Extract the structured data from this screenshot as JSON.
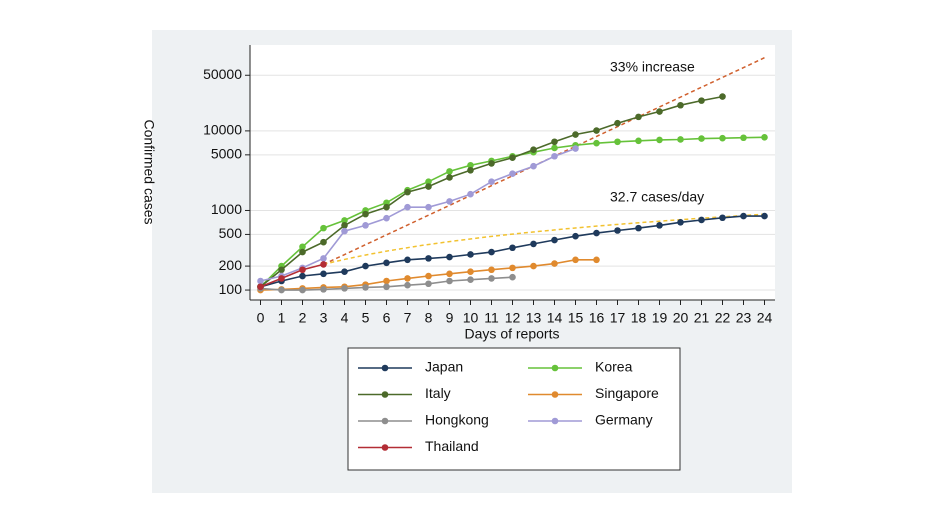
{
  "chart_data": {
    "type": "line",
    "ylabel": "Confirmed cases",
    "xlabel": "Days of reports",
    "log_y": true,
    "grid": true,
    "legend": "below",
    "x": [
      0,
      1,
      2,
      3,
      4,
      5,
      6,
      7,
      8,
      9,
      10,
      11,
      12,
      13,
      14,
      15,
      16,
      17,
      18,
      19,
      20,
      21,
      22,
      23,
      24
    ],
    "xlim": [
      -0.5,
      24.5
    ],
    "xticks": [
      0,
      1,
      2,
      3,
      4,
      5,
      6,
      7,
      8,
      9,
      10,
      11,
      12,
      13,
      14,
      15,
      16,
      17,
      18,
      19,
      20,
      21,
      22,
      23,
      24
    ],
    "ylim": [
      75,
      120000
    ],
    "yticks": [
      100,
      200,
      500,
      1000,
      5000,
      10000,
      50000
    ],
    "series": [
      {
        "name": "Japan",
        "color": "#1f3a5c",
        "values": [
          110,
          130,
          150,
          160,
          170,
          200,
          220,
          240,
          250,
          260,
          280,
          300,
          340,
          380,
          425,
          475,
          520,
          560,
          600,
          650,
          710,
          760,
          810,
          850,
          850
        ]
      },
      {
        "name": "Korea",
        "color": "#66c23a",
        "values": [
          110,
          200,
          350,
          600,
          750,
          1000,
          1250,
          1800,
          2300,
          3100,
          3700,
          4200,
          4800,
          5400,
          6100,
          6600,
          7000,
          7300,
          7500,
          7700,
          7800,
          8000,
          8100,
          8200,
          8300
        ]
      },
      {
        "name": "Italy",
        "color": "#4c6a2a",
        "values": [
          110,
          180,
          300,
          400,
          650,
          900,
          1100,
          1700,
          2000,
          2600,
          3200,
          3900,
          4600,
          5800,
          7300,
          9000,
          10100,
          12500,
          15000,
          17500,
          21000,
          24000,
          27000,
          null,
          null
        ]
      },
      {
        "name": "Singapore",
        "color": "#e08a2e",
        "values": [
          100,
          102,
          105,
          108,
          110,
          117,
          130,
          140,
          150,
          160,
          170,
          180,
          190,
          200,
          215,
          240,
          240,
          null,
          null,
          null,
          null,
          null,
          null,
          null,
          null
        ]
      },
      {
        "name": "Hongkong",
        "color": "#8e8e8e",
        "values": [
          105,
          100,
          100,
          102,
          105,
          108,
          110,
          115,
          120,
          130,
          135,
          140,
          145,
          null,
          null,
          null,
          null,
          null,
          null,
          null,
          null,
          null,
          null,
          null,
          null
        ]
      },
      {
        "name": "Germany",
        "color": "#a09ad6",
        "values": [
          130,
          150,
          190,
          250,
          550,
          650,
          800,
          1100,
          1100,
          1300,
          1600,
          2300,
          2900,
          3600,
          4800,
          6000,
          null,
          null,
          null,
          null,
          null,
          null,
          null,
          null,
          null
        ]
      },
      {
        "name": "Thailand",
        "color": "#b32d35",
        "values": [
          110,
          140,
          180,
          210,
          null,
          null,
          null,
          null,
          null,
          null,
          null,
          null,
          null,
          null,
          null,
          null,
          null,
          null,
          null,
          null,
          null,
          null,
          null,
          null,
          null
        ]
      }
    ],
    "trend_lines": [
      {
        "label": "33% increase",
        "color": "#d0602e",
        "growth": "exponential",
        "x": [
          3,
          24
        ],
        "values": [
          210,
          83000
        ]
      },
      {
        "label": "32.7 cases/day",
        "color": "#f2c230",
        "growth": "linear",
        "x": [
          3,
          24
        ],
        "values": [
          210,
          897
        ]
      }
    ]
  }
}
